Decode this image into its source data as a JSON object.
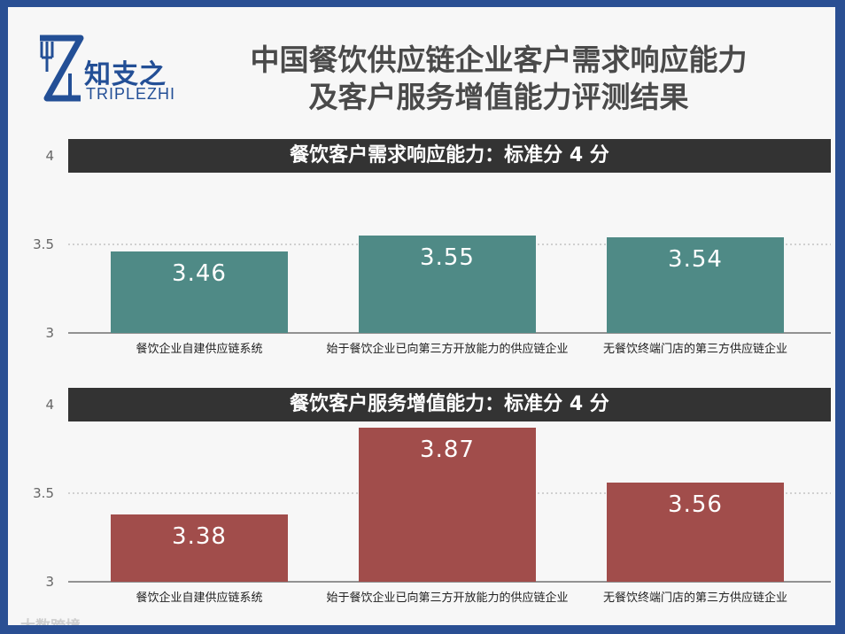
{
  "brand": {
    "name_cn": "知支之",
    "name_en": "TRIPLEZHI"
  },
  "title_lines": [
    "中国餐饮供应链企业客户需求响应能力",
    "及客户服务增值能力评测结果"
  ],
  "watermark": "大数跨境",
  "colors": {
    "page_border": "#2a4f93",
    "panel_header": "#333333",
    "series_1": "#4f8a86",
    "series_2": "#a14d4b",
    "brand": "#234f96"
  },
  "chart_data": [
    {
      "type": "bar",
      "header": "餐饮客户需求响应能力：标准分 4 分",
      "categories": [
        "餐饮企业自建供应链系统",
        "始于餐饮企业已向第三方开放能力的供应链企业",
        "无餐饮终端门店的第三方供应链企业"
      ],
      "values": [
        3.46,
        3.55,
        3.54
      ],
      "value_labels": [
        "3.46",
        "3.55",
        "3.54"
      ],
      "yticks": [
        "3",
        "3.5",
        "4"
      ],
      "ylim": [
        3,
        4
      ],
      "grid": "dotted",
      "color": "#4f8a86"
    },
    {
      "type": "bar",
      "header": "餐饮客户服务增值能力：标准分 4 分",
      "categories": [
        "餐饮企业自建供应链系统",
        "始于餐饮企业已向第三方开放能力的供应链企业",
        "无餐饮终端门店的第三方供应链企业"
      ],
      "values": [
        3.38,
        3.87,
        3.56
      ],
      "value_labels": [
        "3.38",
        "3.87",
        "3.56"
      ],
      "yticks": [
        "3",
        "3.5",
        "4"
      ],
      "ylim": [
        3,
        4
      ],
      "grid": "dotted",
      "color": "#a14d4b"
    }
  ]
}
